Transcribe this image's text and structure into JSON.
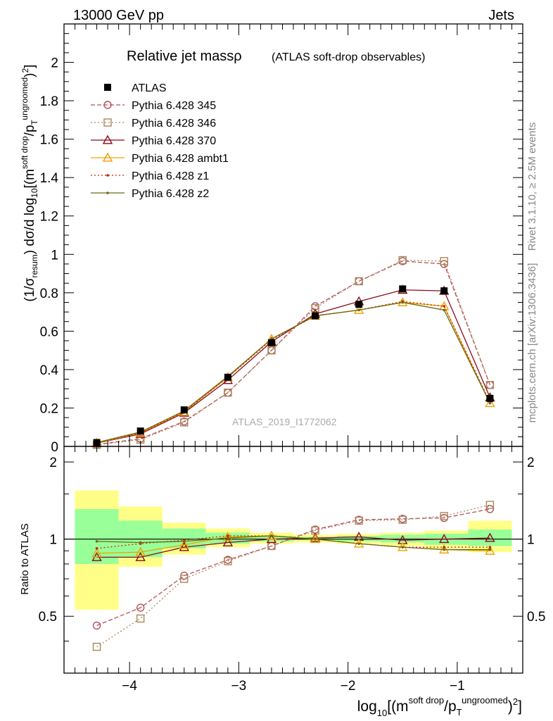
{
  "header": {
    "left": "13000 GeV pp",
    "right": "Jets"
  },
  "title": {
    "main": "Relative jet massρ",
    "sub": "(ATLAS soft-drop observables)"
  },
  "side_labels": {
    "rivet": "Rivet 3.1.10, ≥ 2.5M events",
    "mcplots": "mcplots.cern.ch [arXiv:1306.3436]"
  },
  "analysis_label": "ATLAS_2019_I1772062",
  "ratio_ylabel": "Ratio to ATLAS",
  "colors": {
    "atlas": "#000000",
    "p345": "#b5505a",
    "p346": "#a8875a",
    "p370": "#8b0a1e",
    "ambt1": "#f0a000",
    "z1": "#cc2200",
    "z2": "#6b6b10",
    "band_yellow": "#ffff88",
    "band_green": "#99ff99"
  },
  "chart_data": {
    "type": "line",
    "xlabel": "log10[(m^soft drop/pT^ungroomed)^2]",
    "ylabel": "(1/σ_resum) dσ/d log10[(m^soft drop/pT^ungroomed)^2]",
    "xlim": [
      -4.6,
      -0.4
    ],
    "ylim": [
      0,
      2.2
    ],
    "ratio_ylim": [
      0.3,
      2.3
    ],
    "x_ticks": [
      "−4",
      "−3",
      "−2",
      "−1"
    ],
    "x_tick_values": [
      -4,
      -3,
      -2,
      -1
    ],
    "y_ticks": [
      "0",
      "0.2",
      "0.4",
      "0.6",
      "0.8",
      "1",
      "1.2",
      "1.4",
      "1.6",
      "1.8",
      "2"
    ],
    "y_tick_values": [
      0,
      0.2,
      0.4,
      0.6,
      0.8,
      1,
      1.2,
      1.4,
      1.6,
      1.8,
      2
    ],
    "ratio_ticks": [
      "0.5",
      "1",
      "2"
    ],
    "ratio_tick_values": [
      0.5,
      1,
      2
    ],
    "bin_edges": [
      -4.5,
      -4.1,
      -3.7,
      -3.3,
      -2.9,
      -2.5,
      -2.1,
      -1.7,
      -1.3,
      -0.9,
      -0.5
    ],
    "x": [
      -4.3,
      -3.9,
      -3.5,
      -3.1,
      -2.7,
      -2.3,
      -1.9,
      -1.5,
      -1.12,
      -0.7
    ],
    "atlas": {
      "name": "ATLAS",
      "values": [
        0.02,
        0.08,
        0.19,
        0.36,
        0.54,
        0.68,
        0.74,
        0.82,
        0.81,
        0.25
      ]
    },
    "series": [
      {
        "key": "p345",
        "name": "Pythia 6.428 345",
        "style": "dashed",
        "marker": "circle",
        "values": [
          0.01,
          0.04,
          0.13,
          0.28,
          0.5,
          0.73,
          0.86,
          0.965,
          0.95,
          0.32
        ],
        "ratio": [
          0.46,
          0.54,
          0.72,
          0.83,
          0.94,
          1.09,
          1.19,
          1.2,
          1.21,
          1.31
        ]
      },
      {
        "key": "p346",
        "name": "Pythia 6.428 346",
        "style": "dotted",
        "marker": "square",
        "values": [
          0.008,
          0.035,
          0.125,
          0.28,
          0.5,
          0.72,
          0.86,
          0.97,
          0.965,
          0.32
        ],
        "ratio": [
          0.38,
          0.49,
          0.7,
          0.82,
          0.94,
          1.08,
          1.18,
          1.19,
          1.23,
          1.36
        ]
      },
      {
        "key": "p370",
        "name": "Pythia 6.428 370",
        "style": "solid",
        "marker": "triangle",
        "values": [
          0.017,
          0.065,
          0.175,
          0.345,
          0.545,
          0.69,
          0.755,
          0.815,
          0.81,
          0.255
        ],
        "ratio": [
          0.85,
          0.85,
          0.93,
          0.97,
          1.0,
          1.01,
          1.02,
          0.99,
          1.0,
          1.01
        ]
      },
      {
        "key": "ambt1",
        "name": "Pythia 6.428 ambt1",
        "style": "solid",
        "marker": "triangle",
        "values": [
          0.018,
          0.07,
          0.18,
          0.36,
          0.56,
          0.68,
          0.71,
          0.75,
          0.73,
          0.225
        ],
        "ratio": [
          0.88,
          0.89,
          0.95,
          1.02,
          1.03,
          1.0,
          0.96,
          0.93,
          0.91,
          0.9
        ]
      },
      {
        "key": "z1",
        "name": "Pythia 6.428 z1",
        "style": "dotted",
        "marker": "dot",
        "values": [
          0.018,
          0.072,
          0.18,
          0.36,
          0.555,
          0.68,
          0.71,
          0.755,
          0.73,
          0.23
        ],
        "ratio": [
          0.92,
          0.96,
          0.99,
          1.03,
          1.03,
          1.0,
          0.96,
          0.93,
          0.93,
          0.93
        ]
      },
      {
        "key": "z2",
        "name": "Pythia 6.428 z2",
        "style": "solid",
        "marker": "dot",
        "values": [
          0.02,
          0.075,
          0.185,
          0.365,
          0.56,
          0.68,
          0.71,
          0.75,
          0.71,
          0.225
        ],
        "ratio": [
          0.98,
          0.97,
          0.98,
          1.01,
          1.03,
          1.0,
          0.96,
          0.93,
          0.91,
          0.91
        ]
      }
    ],
    "uncertainty_band": {
      "yellow_low": [
        0.53,
        0.78,
        0.87,
        0.93,
        0.96,
        0.97,
        0.96,
        0.94,
        0.92,
        0.89
      ],
      "yellow_high": [
        1.55,
        1.34,
        1.16,
        1.1,
        1.06,
        1.04,
        1.05,
        1.06,
        1.08,
        1.18
      ],
      "green_low": [
        0.8,
        0.85,
        0.92,
        0.96,
        0.98,
        0.99,
        0.98,
        0.97,
        0.95,
        0.94
      ],
      "green_high": [
        1.31,
        1.18,
        1.1,
        1.06,
        1.03,
        1.02,
        1.03,
        1.04,
        1.05,
        1.09
      ]
    }
  }
}
